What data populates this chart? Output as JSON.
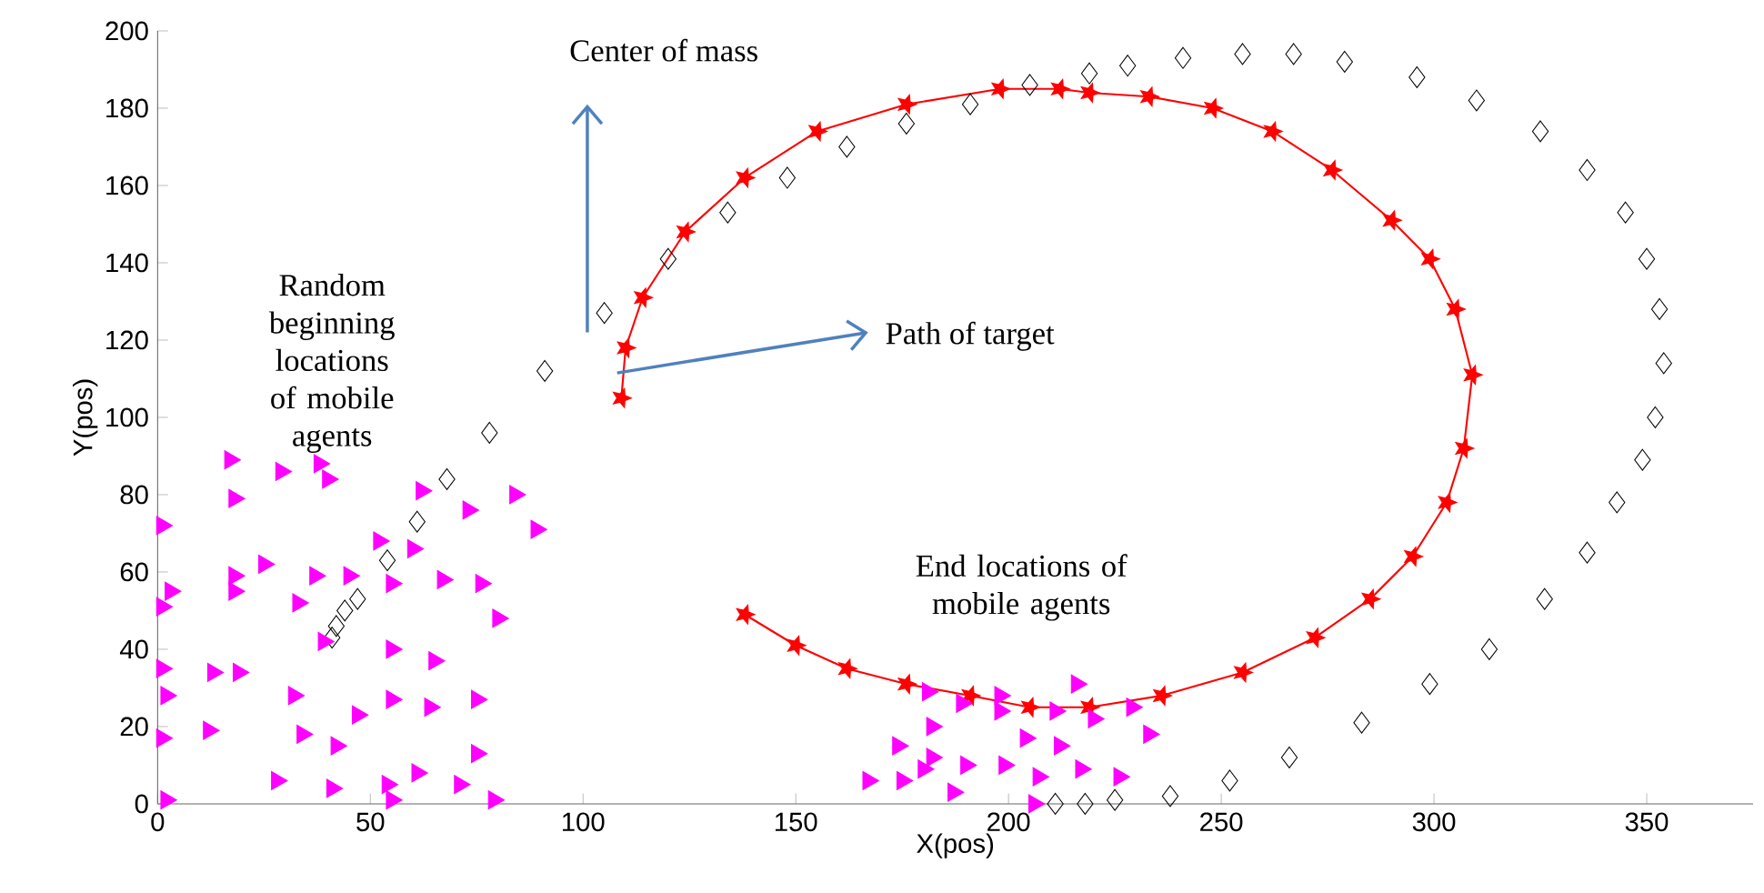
{
  "chart_data": {
    "type": "scatter",
    "xlabel": "X(pos)",
    "ylabel": "Y(pos)",
    "xlim": [
      0,
      375
    ],
    "ylim": [
      0,
      200
    ],
    "xticks": [
      0,
      50,
      100,
      150,
      200,
      250,
      300,
      350
    ],
    "yticks": [
      0,
      20,
      40,
      60,
      80,
      100,
      120,
      140,
      160,
      180,
      200
    ],
    "grid": false,
    "annotations": [
      "Center of mass",
      "Random beginning locations of mobile agents",
      {
        "text": "Path of target",
        "x": 108,
        "y": 111.5
      },
      "End locations of mobile agents"
    ],
    "series": [
      {
        "type": "line",
        "color": "#ff0000",
        "marker": "star",
        "line_style": "solid",
        "x": [
          109,
          110,
          114,
          124,
          138,
          155,
          176,
          198,
          212,
          219,
          233,
          248,
          262,
          276,
          290,
          299,
          305,
          309,
          307,
          303,
          295,
          285,
          272,
          255,
          236,
          219,
          205,
          191,
          176,
          162,
          150,
          138
        ],
        "values": [
          105,
          118,
          131,
          148,
          162,
          174,
          181,
          185,
          185,
          184,
          183,
          180,
          174,
          164,
          151,
          141,
          128,
          111,
          92,
          78,
          64,
          53,
          43,
          34,
          28,
          25,
          25,
          28,
          31,
          35,
          41,
          49
        ]
      },
      {
        "color": "#000000",
        "marker": "diamond",
        "x": [
          41,
          42,
          44,
          47,
          54,
          61,
          68,
          78,
          91,
          105,
          120,
          134,
          148,
          162,
          176,
          191,
          205,
          219,
          228,
          241,
          255,
          267,
          279,
          296,
          310,
          325,
          336,
          345,
          350,
          353,
          354,
          352,
          349,
          343,
          336,
          326,
          313,
          299,
          283,
          266,
          252,
          238,
          225,
          218,
          211
        ],
        "values": [
          43,
          46,
          50,
          53,
          63,
          73,
          84,
          96,
          112,
          127,
          141,
          153,
          162,
          170,
          176,
          181,
          186,
          189,
          191,
          193,
          194,
          194,
          192,
          188,
          182,
          174,
          164,
          153,
          141,
          128,
          114,
          100,
          89,
          78,
          65,
          53,
          40,
          31,
          21,
          12,
          6,
          2,
          1,
          0,
          0
        ]
      },
      {
        "color": "#ff00ff",
        "marker": "triangle",
        "x": [
          17,
          29,
          38,
          40,
          18,
          62,
          73,
          84,
          89,
          1,
          52,
          60,
          25,
          37,
          45,
          55,
          67,
          76,
          3,
          18,
          18,
          33,
          1,
          80,
          39,
          55,
          65,
          1,
          13,
          19,
          32,
          2,
          55,
          64,
          75,
          47,
          34,
          42,
          12,
          1,
          75,
          28,
          41,
          54,
          61,
          71,
          2,
          55,
          79
        ],
        "values": [
          89,
          86,
          88,
          84,
          79,
          81,
          76,
          80,
          71,
          72,
          68,
          66,
          62,
          59,
          59,
          57,
          58,
          57,
          55,
          59,
          55,
          52,
          51,
          48,
          42,
          40,
          37,
          35,
          34,
          34,
          28,
          28,
          27,
          25,
          27,
          23,
          18,
          15,
          19,
          17,
          13,
          6,
          4,
          5,
          8,
          5,
          1,
          1,
          1
        ]
      },
      {
        "color": "#ff00ff",
        "marker": "triangle",
        "x": [
          181,
          189,
          198,
          198,
          211,
          216,
          220,
          229,
          182,
          174,
          182,
          190,
          199,
          204,
          212,
          233,
          207,
          217,
          226,
          167,
          175,
          180,
          187,
          206
        ],
        "values": [
          29,
          26,
          28,
          24,
          24,
          31,
          22,
          25,
          20,
          15,
          12,
          10,
          10,
          17,
          15,
          18,
          7,
          9,
          7,
          6,
          6,
          9,
          3,
          0
        ]
      }
    ]
  }
}
